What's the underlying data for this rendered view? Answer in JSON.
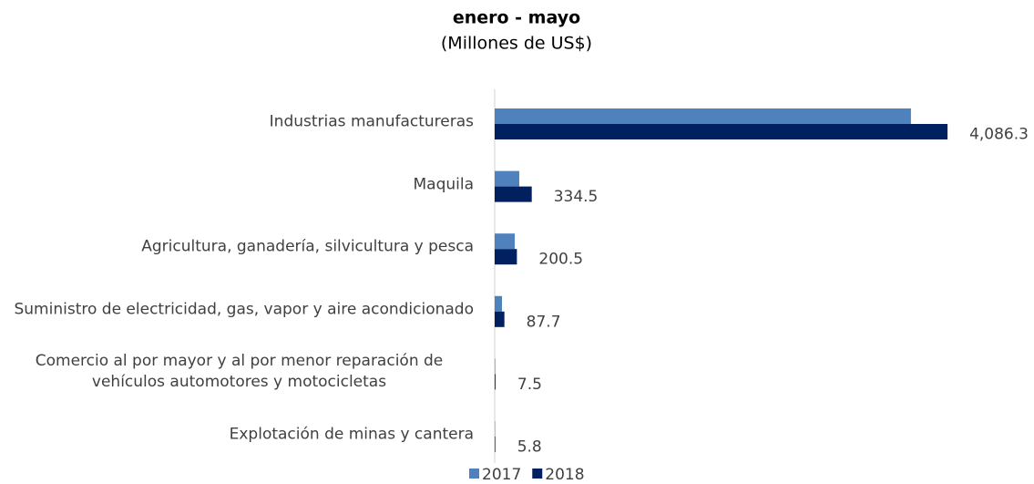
{
  "chart_data": {
    "type": "bar",
    "orientation": "horizontal",
    "title": "enero - mayo",
    "subtitle": "(Millones de US$)",
    "categories": [
      "Industrias manufactureras",
      "Maquila",
      "Agricultura, ganadería, silvicultura y pesca",
      "Suministro de electricidad, gas, vapor y aire acondicionado",
      "Comercio al por mayor y al por menor reparación de vehículos automotores y motocicletas",
      "Explotación de minas y cantera"
    ],
    "series": [
      {
        "name": "2017",
        "color": "#4f81bd",
        "values": [
          3756,
          222,
          181,
          66,
          5,
          4
        ]
      },
      {
        "name": "2018",
        "color": "#002060",
        "values": [
          4086.3,
          334.5,
          200.5,
          87.7,
          7.5,
          5.8
        ],
        "value_labels": [
          "4,086.3",
          "334.5",
          "200.5",
          "87.7",
          "7.5",
          "5.8"
        ]
      }
    ],
    "xlim": [
      0,
      4250
    ],
    "legend": "bottom"
  }
}
